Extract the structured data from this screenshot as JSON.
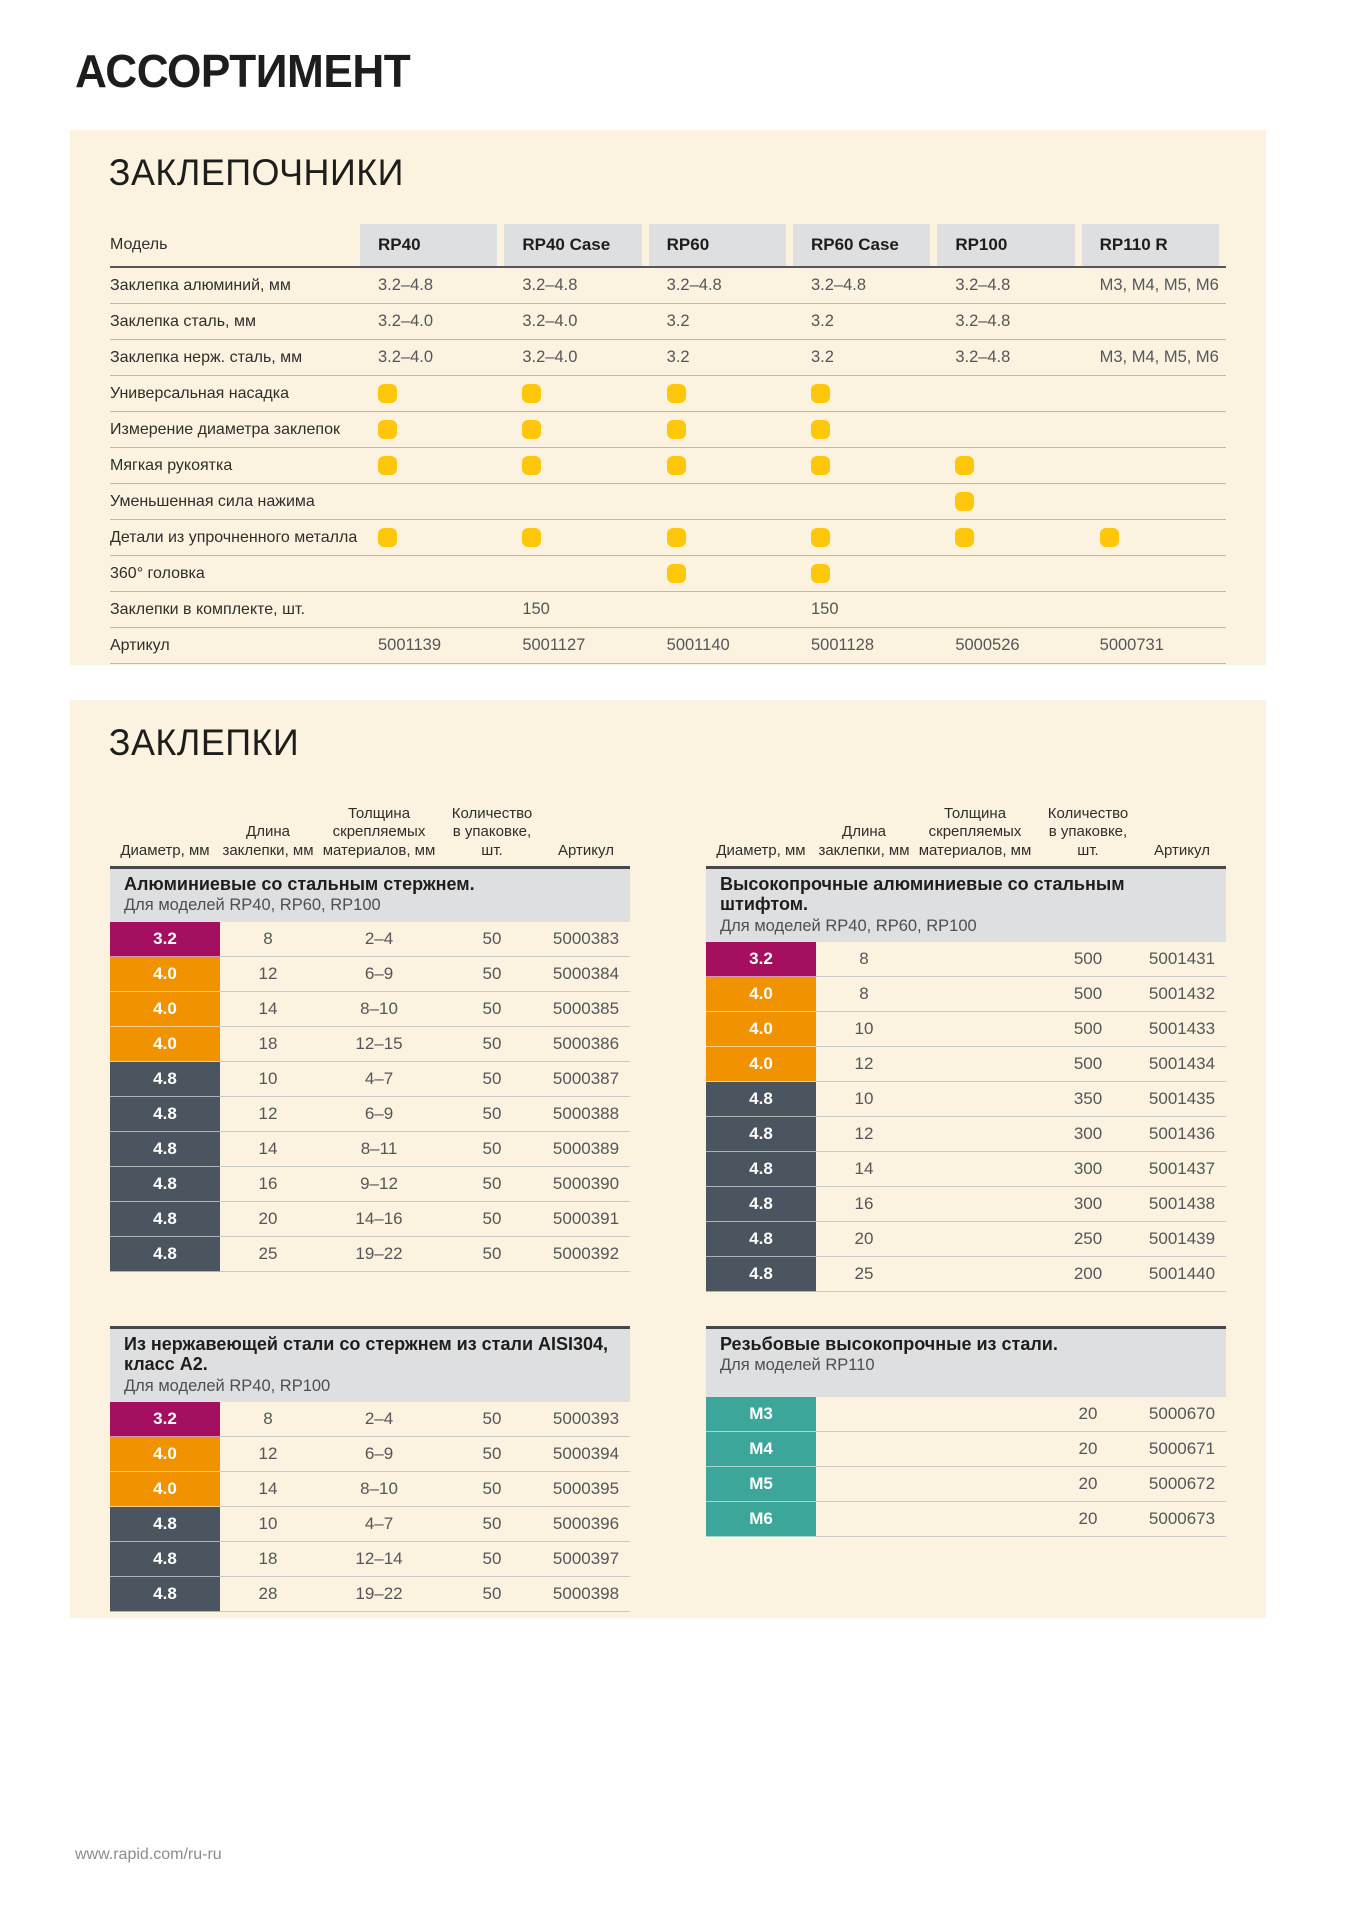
{
  "page": {
    "title": "АССОРТИМЕНТ",
    "footer_url": "www.rapid.com/ru-ru"
  },
  "colors": {
    "crimson": "#A50F60",
    "orange": "#F19300",
    "slate": "#4A555F",
    "teal": "#3DA69A",
    "dot_yellow": "#FEC70B"
  },
  "riveters": {
    "section_title": "ЗАКЛЕПОЧНИКИ",
    "model_header": "Модель",
    "models": [
      "RP40",
      "RP40 Case",
      "RP60",
      "RP60 Case",
      "RP100",
      "RP110 R"
    ],
    "rows": [
      {
        "label": "Заклепка алюминий, мм",
        "type": "text",
        "values": [
          "3.2–4.8",
          "3.2–4.8",
          "3.2–4.8",
          "3.2–4.8",
          "3.2–4.8",
          "M3, M4, M5, M6"
        ]
      },
      {
        "label": "Заклепка сталь, мм",
        "type": "text",
        "values": [
          "3.2–4.0",
          "3.2–4.0",
          "3.2",
          "3.2",
          "3.2–4.8",
          ""
        ]
      },
      {
        "label": "Заклепка нерж. сталь, мм",
        "type": "text",
        "values": [
          "3.2–4.0",
          "3.2–4.0",
          "3.2",
          "3.2",
          "3.2–4.8",
          "M3, M4, M5, M6"
        ]
      },
      {
        "label": "Универсальная насадка",
        "type": "dot",
        "values": [
          true,
          true,
          true,
          true,
          false,
          false
        ]
      },
      {
        "label": "Измерение диаметра заклепок",
        "type": "dot",
        "values": [
          true,
          true,
          true,
          true,
          false,
          false
        ]
      },
      {
        "label": "Мягкая рукоятка",
        "type": "dot",
        "values": [
          true,
          true,
          true,
          true,
          true,
          false
        ]
      },
      {
        "label": "Уменьшенная сила нажима",
        "type": "dot",
        "values": [
          false,
          false,
          false,
          false,
          true,
          false
        ]
      },
      {
        "label": "Детали из упрочненного металла",
        "type": "dot",
        "values": [
          true,
          true,
          true,
          true,
          true,
          true
        ]
      },
      {
        "label": "360° головка",
        "type": "dot",
        "values": [
          false,
          false,
          true,
          true,
          false,
          false
        ]
      },
      {
        "label": "Заклепки в комплекте, шт.",
        "type": "text",
        "values": [
          "",
          "150",
          "",
          "150",
          "",
          ""
        ]
      },
      {
        "label": "Артикул",
        "type": "text",
        "values": [
          "5001139",
          "5001127",
          "5001140",
          "5001128",
          "5000526",
          "5000731"
        ]
      }
    ]
  },
  "rivets": {
    "section_title": "ЗАКЛЕПКИ",
    "column_headers": [
      "Диаметр, мм",
      "Длина\nзаклепки, мм",
      "Толщина\nскрепляемых\nматериалов, мм",
      "Количество\nв упаковке, шт.",
      "Артикул"
    ],
    "tables": [
      {
        "title": "Алюминиевые со стальным стержнем.",
        "subtitle": "Для моделей RP40, RP60, RP100",
        "show_column_headers": true,
        "rows": [
          {
            "diameter": "3.2",
            "length": "8",
            "thickness": "2–4",
            "qty": "50",
            "sku": "5000383"
          },
          {
            "diameter": "4.0",
            "length": "12",
            "thickness": "6–9",
            "qty": "50",
            "sku": "5000384"
          },
          {
            "diameter": "4.0",
            "length": "14",
            "thickness": "8–10",
            "qty": "50",
            "sku": "5000385"
          },
          {
            "diameter": "4.0",
            "length": "18",
            "thickness": "12–15",
            "qty": "50",
            "sku": "5000386"
          },
          {
            "diameter": "4.8",
            "length": "10",
            "thickness": "4–7",
            "qty": "50",
            "sku": "5000387"
          },
          {
            "diameter": "4.8",
            "length": "12",
            "thickness": "6–9",
            "qty": "50",
            "sku": "5000388"
          },
          {
            "diameter": "4.8",
            "length": "14",
            "thickness": "8–11",
            "qty": "50",
            "sku": "5000389"
          },
          {
            "diameter": "4.8",
            "length": "16",
            "thickness": "9–12",
            "qty": "50",
            "sku": "5000390"
          },
          {
            "diameter": "4.8",
            "length": "20",
            "thickness": "14–16",
            "qty": "50",
            "sku": "5000391"
          },
          {
            "diameter": "4.8",
            "length": "25",
            "thickness": "19–22",
            "qty": "50",
            "sku": "5000392"
          }
        ]
      },
      {
        "title": "Высокопрочные алюминиевые со стальным штифтом.",
        "subtitle": "Для моделей RP40, RP60, RP100",
        "show_column_headers": true,
        "rows": [
          {
            "diameter": "3.2",
            "length": "8",
            "thickness": "",
            "qty": "500",
            "sku": "5001431"
          },
          {
            "diameter": "4.0",
            "length": "8",
            "thickness": "",
            "qty": "500",
            "sku": "5001432"
          },
          {
            "diameter": "4.0",
            "length": "10",
            "thickness": "",
            "qty": "500",
            "sku": "5001433"
          },
          {
            "diameter": "4.0",
            "length": "12",
            "thickness": "",
            "qty": "500",
            "sku": "5001434"
          },
          {
            "diameter": "4.8",
            "length": "10",
            "thickness": "",
            "qty": "350",
            "sku": "5001435"
          },
          {
            "diameter": "4.8",
            "length": "12",
            "thickness": "",
            "qty": "300",
            "sku": "5001436"
          },
          {
            "diameter": "4.8",
            "length": "14",
            "thickness": "",
            "qty": "300",
            "sku": "5001437"
          },
          {
            "diameter": "4.8",
            "length": "16",
            "thickness": "",
            "qty": "300",
            "sku": "5001438"
          },
          {
            "diameter": "4.8",
            "length": "20",
            "thickness": "",
            "qty": "250",
            "sku": "5001439"
          },
          {
            "diameter": "4.8",
            "length": "25",
            "thickness": "",
            "qty": "200",
            "sku": "5001440"
          }
        ]
      },
      {
        "title": "Из нержавеющей стали со стержнем из стали AISI304, класс А2.",
        "subtitle": "Для моделей RP40, RP100",
        "show_column_headers": false,
        "rows": [
          {
            "diameter": "3.2",
            "length": "8",
            "thickness": "2–4",
            "qty": "50",
            "sku": "5000393"
          },
          {
            "diameter": "4.0",
            "length": "12",
            "thickness": "6–9",
            "qty": "50",
            "sku": "5000394"
          },
          {
            "diameter": "4.0",
            "length": "14",
            "thickness": "8–10",
            "qty": "50",
            "sku": "5000395"
          },
          {
            "diameter": "4.8",
            "length": "10",
            "thickness": "4–7",
            "qty": "50",
            "sku": "5000396"
          },
          {
            "diameter": "4.8",
            "length": "18",
            "thickness": "12–14",
            "qty": "50",
            "sku": "5000397"
          },
          {
            "diameter": "4.8",
            "length": "28",
            "thickness": "19–22",
            "qty": "50",
            "sku": "5000398"
          }
        ]
      },
      {
        "title": "Резьбовые высокопрочные из стали.",
        "subtitle": "Для моделей RP110",
        "show_column_headers": false,
        "rows": [
          {
            "diameter": "M3",
            "length": "",
            "thickness": "",
            "qty": "20",
            "sku": "5000670"
          },
          {
            "diameter": "M4",
            "length": "",
            "thickness": "",
            "qty": "20",
            "sku": "5000671"
          },
          {
            "diameter": "M5",
            "length": "",
            "thickness": "",
            "qty": "20",
            "sku": "5000672"
          },
          {
            "diameter": "M6",
            "length": "",
            "thickness": "",
            "qty": "20",
            "sku": "5000673"
          }
        ]
      }
    ]
  }
}
